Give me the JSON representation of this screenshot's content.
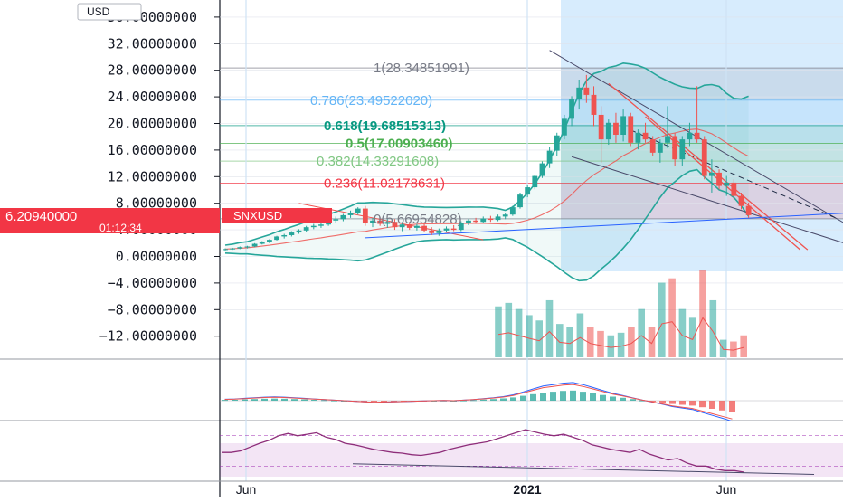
{
  "currency_label": "USD",
  "symbol_badge": "SNXUSD",
  "last_price_label": "6.20940000",
  "countdown_label": "01:12:34",
  "colors": {
    "up": "#26a69a",
    "down": "#ef5350",
    "fib_blue": "#2196f3",
    "bollinger": "#26a69a",
    "sma": "#ef5350",
    "rsi": "#8e2e7a",
    "trendline": "#4a4a6a"
  },
  "chart_data": [
    {
      "type": "candlestick",
      "y_axis_ticks": [
        "36.00000000",
        "32.00000000",
        "28.00000000",
        "24.00000000",
        "20.00000000",
        "16.00000000",
        "12.00000000",
        "8.00000000",
        "4.00000000",
        "0.00000000",
        "−4.00000000",
        "−8.00000000",
        "−12.00000000"
      ],
      "y_axis_values": [
        36,
        32,
        28,
        24,
        20,
        16,
        12,
        8,
        4,
        0,
        -4,
        -8,
        -12
      ],
      "ylim": [
        -15,
        38
      ],
      "x_axis_ticks": [
        "Jun",
        "2021",
        "Jun"
      ],
      "scale": "linear",
      "last_price": 6.2094,
      "candles": [
        [
          1.0,
          1.2,
          0.9,
          1.1
        ],
        [
          1.1,
          1.3,
          1.0,
          1.2
        ],
        [
          1.2,
          1.5,
          1.1,
          1.4
        ],
        [
          1.4,
          1.6,
          1.2,
          1.5
        ],
        [
          1.5,
          2.0,
          1.4,
          1.9
        ],
        [
          1.9,
          2.3,
          1.8,
          2.2
        ],
        [
          2.2,
          2.6,
          2.0,
          2.5
        ],
        [
          2.5,
          3.1,
          2.4,
          3.0
        ],
        [
          3.0,
          3.4,
          2.7,
          3.2
        ],
        [
          3.2,
          3.8,
          3.0,
          3.6
        ],
        [
          3.6,
          4.1,
          3.4,
          3.9
        ],
        [
          3.9,
          4.6,
          3.7,
          4.4
        ],
        [
          4.4,
          4.9,
          4.1,
          4.6
        ],
        [
          4.6,
          5.0,
          4.3,
          4.8
        ],
        [
          4.8,
          5.6,
          4.6,
          5.4
        ],
        [
          5.4,
          6.0,
          5.1,
          5.6
        ],
        [
          5.6,
          6.4,
          5.3,
          6.2
        ],
        [
          6.2,
          6.9,
          5.8,
          6.6
        ],
        [
          6.6,
          7.4,
          6.3,
          7.2
        ],
        [
          7.2,
          7.6,
          4.6,
          5.0
        ],
        [
          5.0,
          5.8,
          4.4,
          5.4
        ],
        [
          5.4,
          5.9,
          4.6,
          4.9
        ],
        [
          4.9,
          5.6,
          4.3,
          5.2
        ],
        [
          5.2,
          5.6,
          4.0,
          4.4
        ],
        [
          4.4,
          5.1,
          3.8,
          4.8
        ],
        [
          4.8,
          5.2,
          4.0,
          4.3
        ],
        [
          4.3,
          4.9,
          3.9,
          4.6
        ],
        [
          4.6,
          4.9,
          3.6,
          3.9
        ],
        [
          3.9,
          4.4,
          3.2,
          3.5
        ],
        [
          3.5,
          4.2,
          3.1,
          3.9
        ],
        [
          3.9,
          4.5,
          3.6,
          4.2
        ],
        [
          4.2,
          4.7,
          3.8,
          4.0
        ],
        [
          4.0,
          5.3,
          3.8,
          5.1
        ],
        [
          5.1,
          5.6,
          4.7,
          5.4
        ],
        [
          5.4,
          5.8,
          4.9,
          5.2
        ],
        [
          5.2,
          6.0,
          5.0,
          5.7
        ],
        [
          5.7,
          6.1,
          5.2,
          5.5
        ],
        [
          5.5,
          6.3,
          5.3,
          6.0
        ],
        [
          6.0,
          6.6,
          5.6,
          6.3
        ],
        [
          6.3,
          7.6,
          6.1,
          7.4
        ],
        [
          7.4,
          9.6,
          7.2,
          9.3
        ],
        [
          9.3,
          10.7,
          8.9,
          10.4
        ],
        [
          10.4,
          12.3,
          10.1,
          12.1
        ],
        [
          12.1,
          14.3,
          11.8,
          14.0
        ],
        [
          14.0,
          16.4,
          13.3,
          15.9
        ],
        [
          15.9,
          18.6,
          15.1,
          18.2
        ],
        [
          18.2,
          21.3,
          17.6,
          20.7
        ],
        [
          20.7,
          24.1,
          19.6,
          23.6
        ],
        [
          23.6,
          26.6,
          22.1,
          25.4
        ],
        [
          25.4,
          27.3,
          23.1,
          24.3
        ],
        [
          24.3,
          25.6,
          19.6,
          21.3
        ],
        [
          21.3,
          22.6,
          14.1,
          17.6
        ],
        [
          17.6,
          20.6,
          16.8,
          20.1
        ],
        [
          20.1,
          21.6,
          17.1,
          18.3
        ],
        [
          18.3,
          22.1,
          17.3,
          21.1
        ],
        [
          21.1,
          21.6,
          16.6,
          17.1
        ],
        [
          17.1,
          19.1,
          16.1,
          18.6
        ],
        [
          18.6,
          20.1,
          17.1,
          17.6
        ],
        [
          17.6,
          18.1,
          15.1,
          15.6
        ],
        [
          15.6,
          17.6,
          14.1,
          17.1
        ],
        [
          17.1,
          22.6,
          16.3,
          18.1
        ],
        [
          18.1,
          18.6,
          13.6,
          14.6
        ],
        [
          14.6,
          18.1,
          13.6,
          17.6
        ],
        [
          17.6,
          20.1,
          16.6,
          18.6
        ],
        [
          18.6,
          25.6,
          17.1,
          17.6
        ],
        [
          17.6,
          18.1,
          11.6,
          12.1
        ],
        [
          12.1,
          14.6,
          9.6,
          12.6
        ],
        [
          12.6,
          13.1,
          10.1,
          10.6
        ],
        [
          10.6,
          12.1,
          9.1,
          11.1
        ],
        [
          11.1,
          11.6,
          8.6,
          9.1
        ],
        [
          9.1,
          9.6,
          7.1,
          7.6
        ],
        [
          7.6,
          8.1,
          5.8,
          6.21
        ]
      ],
      "fibonacci_levels": [
        {
          "ratio": "1",
          "value": "28.34851991",
          "label": "1(28.34851991)",
          "color": "#787b86"
        },
        {
          "ratio": "0.786",
          "value": "23.49522020",
          "label": "0.786(23.49522020)",
          "color": "#64b5f6"
        },
        {
          "ratio": "0.618",
          "value": "19.68515313",
          "label": "0.618(19.68515313)",
          "color": "#089981"
        },
        {
          "ratio": "0.5",
          "value": "17.00903460",
          "label": "0.5(17.00903460)",
          "color": "#4caf50"
        },
        {
          "ratio": "0.382",
          "value": "14.33291608",
          "label": "0.382(14.33291608)",
          "color": "#81c784"
        },
        {
          "ratio": "0.236",
          "value": "11.02178631",
          "label": "0.236(11.02178631)",
          "color": "#f23645"
        },
        {
          "ratio": "0",
          "value": "5.66954828",
          "label": "0(5.66954828)",
          "color": "#787b86"
        }
      ]
    },
    {
      "type": "bar",
      "name": "volume",
      "values": [
        0.58,
        0.62,
        0.55,
        0.48,
        0.42,
        0.65,
        0.38,
        0.35,
        0.5,
        0.35,
        0.3,
        0.25,
        0.28,
        0.35,
        0.55,
        0.35,
        0.85,
        0.9,
        0.55,
        0.45,
        1.0,
        0.65,
        0.2,
        0.18,
        0.25
      ]
    },
    {
      "type": "bar",
      "name": "macd-histogram",
      "values": [
        0.05,
        0.06,
        0.08,
        0.1,
        0.12,
        0.13,
        0.12,
        0.1,
        0.08,
        0.06,
        0.04,
        0.02,
        0.0,
        -0.02,
        -0.04,
        -0.06,
        -0.05,
        -0.04,
        -0.03,
        -0.02,
        -0.01,
        0.0,
        0.01,
        0.0,
        0.02,
        0.04,
        0.07,
        0.1,
        0.14,
        0.2,
        0.3,
        0.4,
        0.5,
        0.55,
        0.6,
        0.62,
        0.55,
        0.45,
        0.35,
        0.25,
        0.18,
        0.1,
        0.02,
        -0.05,
        -0.12,
        -0.2,
        -0.25,
        -0.3,
        -0.4,
        -0.5,
        -0.6,
        -0.7
      ]
    },
    {
      "type": "line",
      "name": "rsi",
      "values": [
        48,
        48,
        50,
        55,
        60,
        64,
        70,
        73,
        70,
        72,
        74,
        68,
        65,
        60,
        58,
        55,
        52,
        50,
        48,
        47,
        45,
        44,
        46,
        48,
        52,
        55,
        58,
        60,
        62,
        66,
        70,
        74,
        78,
        75,
        72,
        70,
        72,
        68,
        64,
        58,
        55,
        52,
        50,
        48,
        52,
        46,
        42,
        38,
        40,
        34,
        30,
        30,
        26,
        24,
        24,
        22
      ]
    }
  ]
}
